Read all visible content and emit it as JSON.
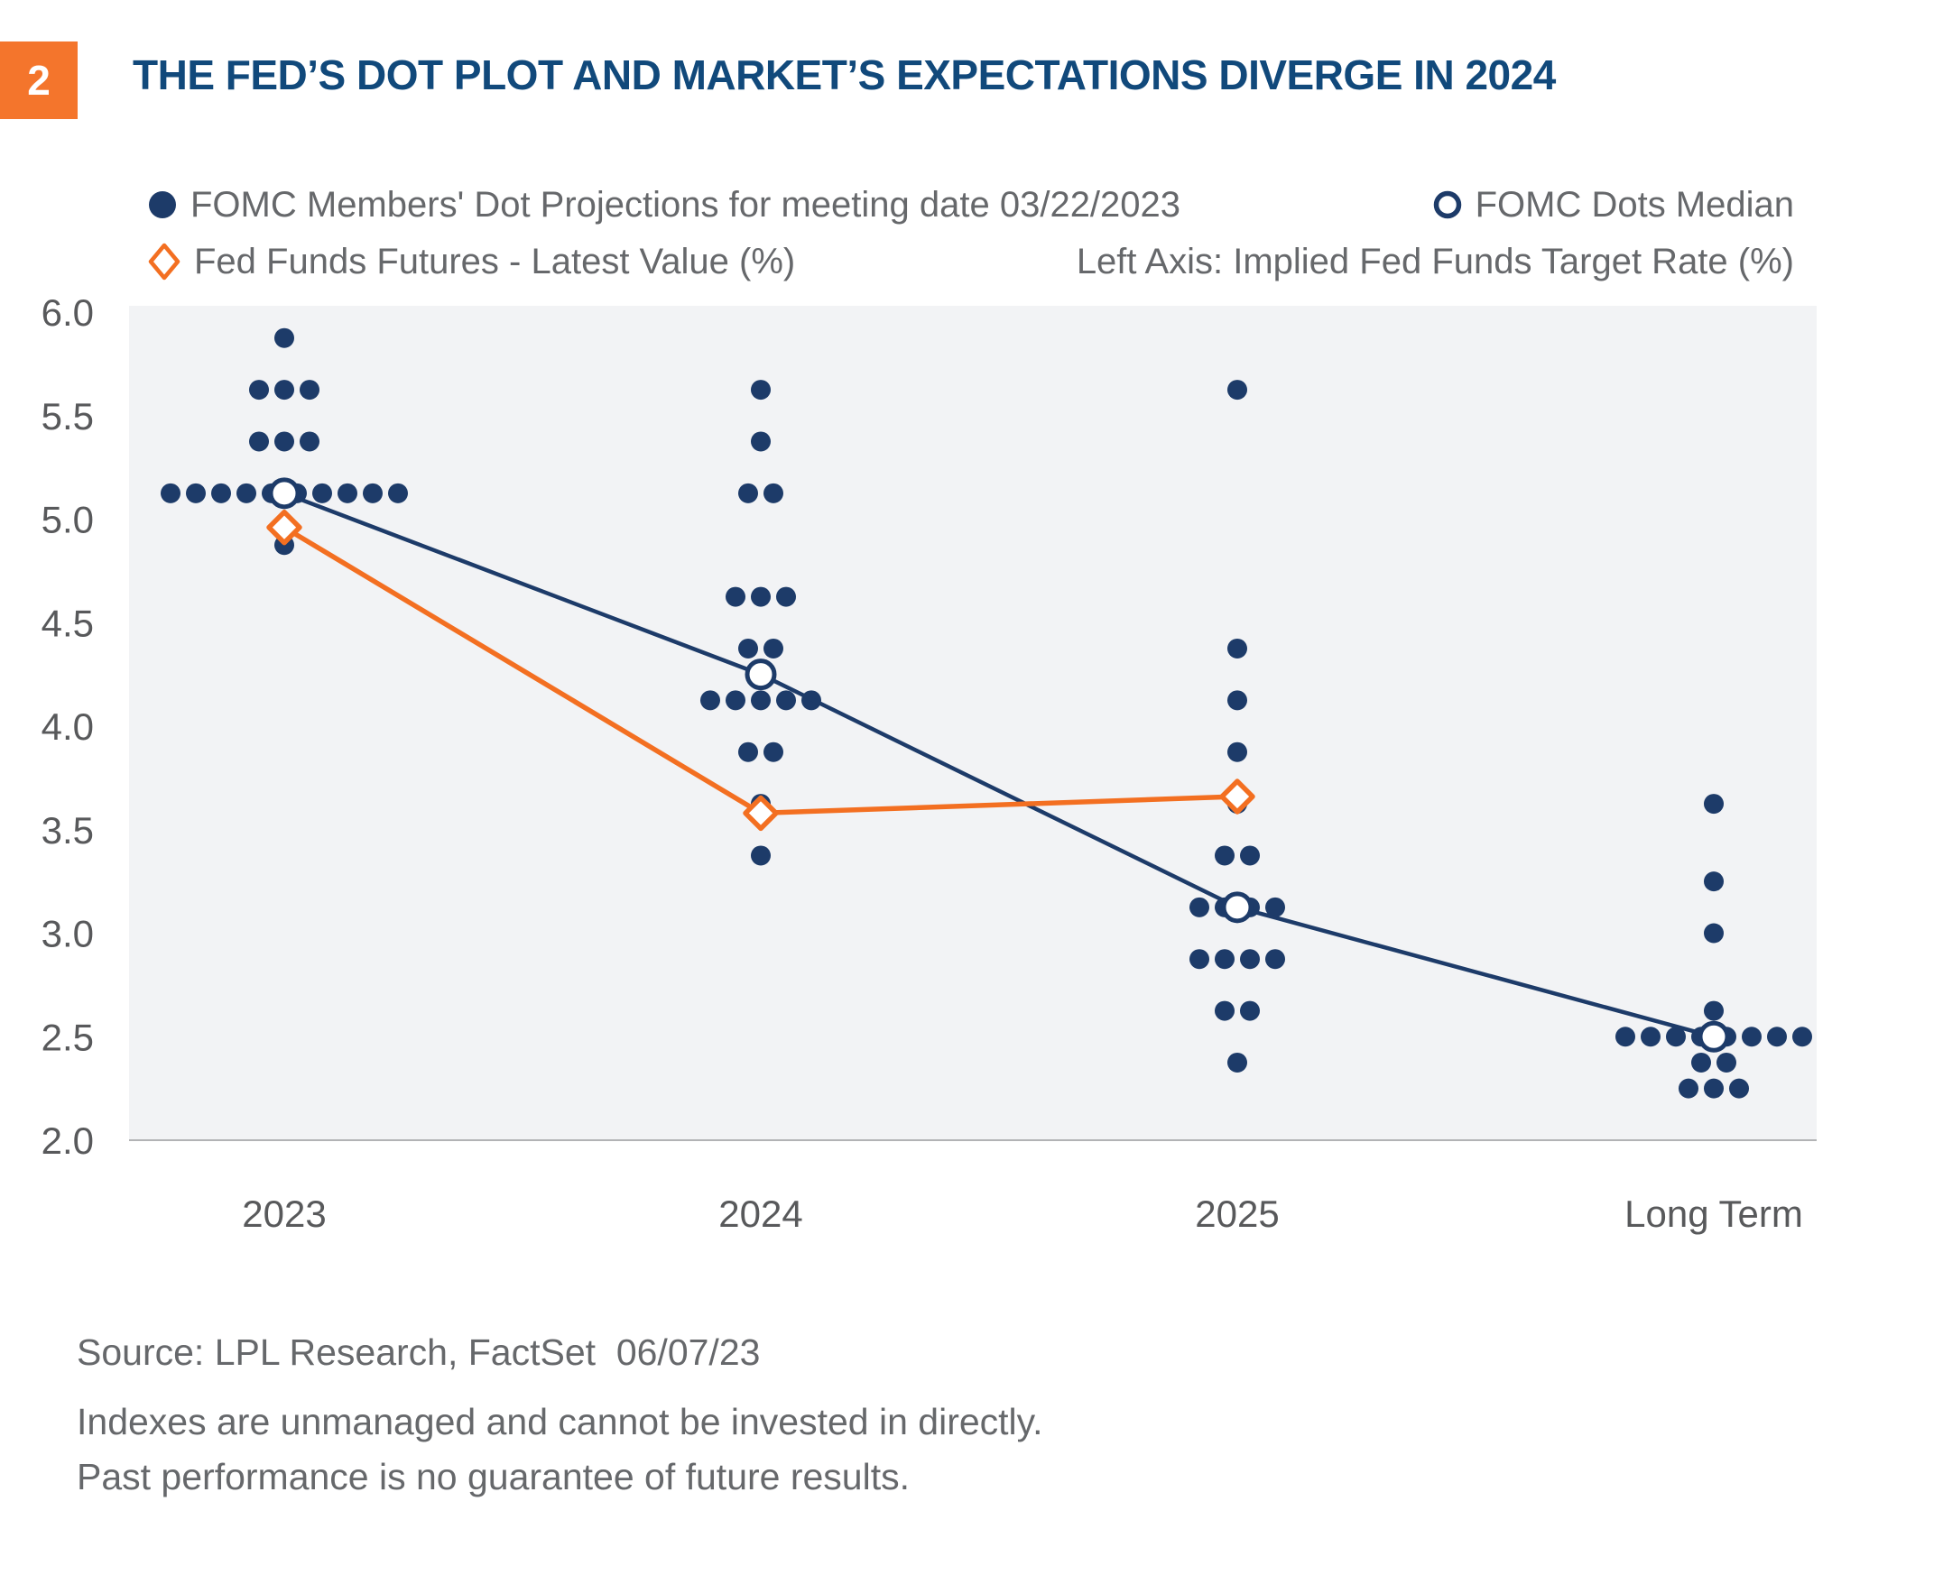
{
  "page": {
    "badge": "2",
    "title": "THE FED’S DOT PLOT AND MARKET’S EXPECTATIONS DIVERGE IN 2024"
  },
  "legend": {
    "fomc_dots": "FOMC Members' Dot Projections for meeting date 03/22/2023",
    "fomc_median": "FOMC Dots Median",
    "fed_funds_futures": "Fed Funds Futures - Latest Value (%)",
    "left_axis_note": "Left Axis: Implied Fed Funds Target Rate (%)"
  },
  "footer": {
    "source": "Source: LPL Research, FactSet  06/07/23",
    "disclaimer1": "Indexes are unmanaged and cannot be invested in directly.",
    "disclaimer2": "Past performance is no guarantee of future results."
  },
  "colors": {
    "navy": "#1d3b69",
    "title_blue": "#11497b",
    "orange": "#f36f21",
    "badge_orange": "#f4752c",
    "text_gray": "#66686b",
    "axis_gray": "#58595b",
    "plot_bg": "#f2f3f5",
    "axis_line": "#b2b3b5"
  },
  "chart_data": {
    "type": "scatter",
    "title": "THE FED’S DOT PLOT AND MARKET’S EXPECTATIONS DIVERGE IN 2024",
    "left_axis_label": "Implied Fed Funds Target Rate (%)",
    "ylim": [
      2.0,
      6.0
    ],
    "yticks": [
      "6.0",
      "5.5",
      "5.0",
      "4.5",
      "4.0",
      "3.5",
      "3.0",
      "2.5",
      "2.0"
    ],
    "grid": "off",
    "legend_position": "top",
    "categories": [
      "2023",
      "2024",
      "2025",
      "Long Term"
    ],
    "series": [
      {
        "name": "FOMC Members' Dot Projections for meeting date 03/22/2023",
        "type": "dot-distribution",
        "columns": [
          {
            "category": "2023",
            "rows": [
              {
                "value": 5.875,
                "count": 1
              },
              {
                "value": 5.625,
                "count": 3
              },
              {
                "value": 5.375,
                "count": 3
              },
              {
                "value": 5.125,
                "count": 10
              },
              {
                "value": 4.875,
                "count": 1
              }
            ]
          },
          {
            "category": "2024",
            "rows": [
              {
                "value": 5.625,
                "count": 1
              },
              {
                "value": 5.375,
                "count": 1
              },
              {
                "value": 5.125,
                "count": 2
              },
              {
                "value": 4.625,
                "count": 3
              },
              {
                "value": 4.375,
                "count": 2
              },
              {
                "value": 4.125,
                "count": 5
              },
              {
                "value": 3.875,
                "count": 2
              },
              {
                "value": 3.625,
                "count": 1
              },
              {
                "value": 3.375,
                "count": 1
              }
            ]
          },
          {
            "category": "2025",
            "rows": [
              {
                "value": 5.625,
                "count": 1
              },
              {
                "value": 4.375,
                "count": 1
              },
              {
                "value": 4.125,
                "count": 1
              },
              {
                "value": 3.875,
                "count": 1
              },
              {
                "value": 3.625,
                "count": 1
              },
              {
                "value": 3.375,
                "count": 2
              },
              {
                "value": 3.125,
                "count": 4
              },
              {
                "value": 2.875,
                "count": 4
              },
              {
                "value": 2.625,
                "count": 2
              },
              {
                "value": 2.375,
                "count": 1
              }
            ]
          },
          {
            "category": "Long Term",
            "rows": [
              {
                "value": 3.625,
                "count": 1
              },
              {
                "value": 3.25,
                "count": 1
              },
              {
                "value": 3.0,
                "count": 1
              },
              {
                "value": 2.625,
                "count": 1
              },
              {
                "value": 2.5,
                "count": 8
              },
              {
                "value": 2.375,
                "count": 2
              },
              {
                "value": 2.25,
                "count": 3
              }
            ]
          }
        ]
      },
      {
        "name": "FOMC Dots Median",
        "type": "line-marker-open-circle",
        "categories": [
          "2023",
          "2024",
          "2025",
          "Long Term"
        ],
        "values": [
          5.125,
          4.25,
          3.125,
          2.5
        ]
      },
      {
        "name": "Fed Funds Futures - Latest Value (%)",
        "type": "line-marker-open-diamond",
        "categories": [
          "2023",
          "2024",
          "2025"
        ],
        "values": [
          4.96,
          3.58,
          3.66
        ]
      }
    ]
  }
}
